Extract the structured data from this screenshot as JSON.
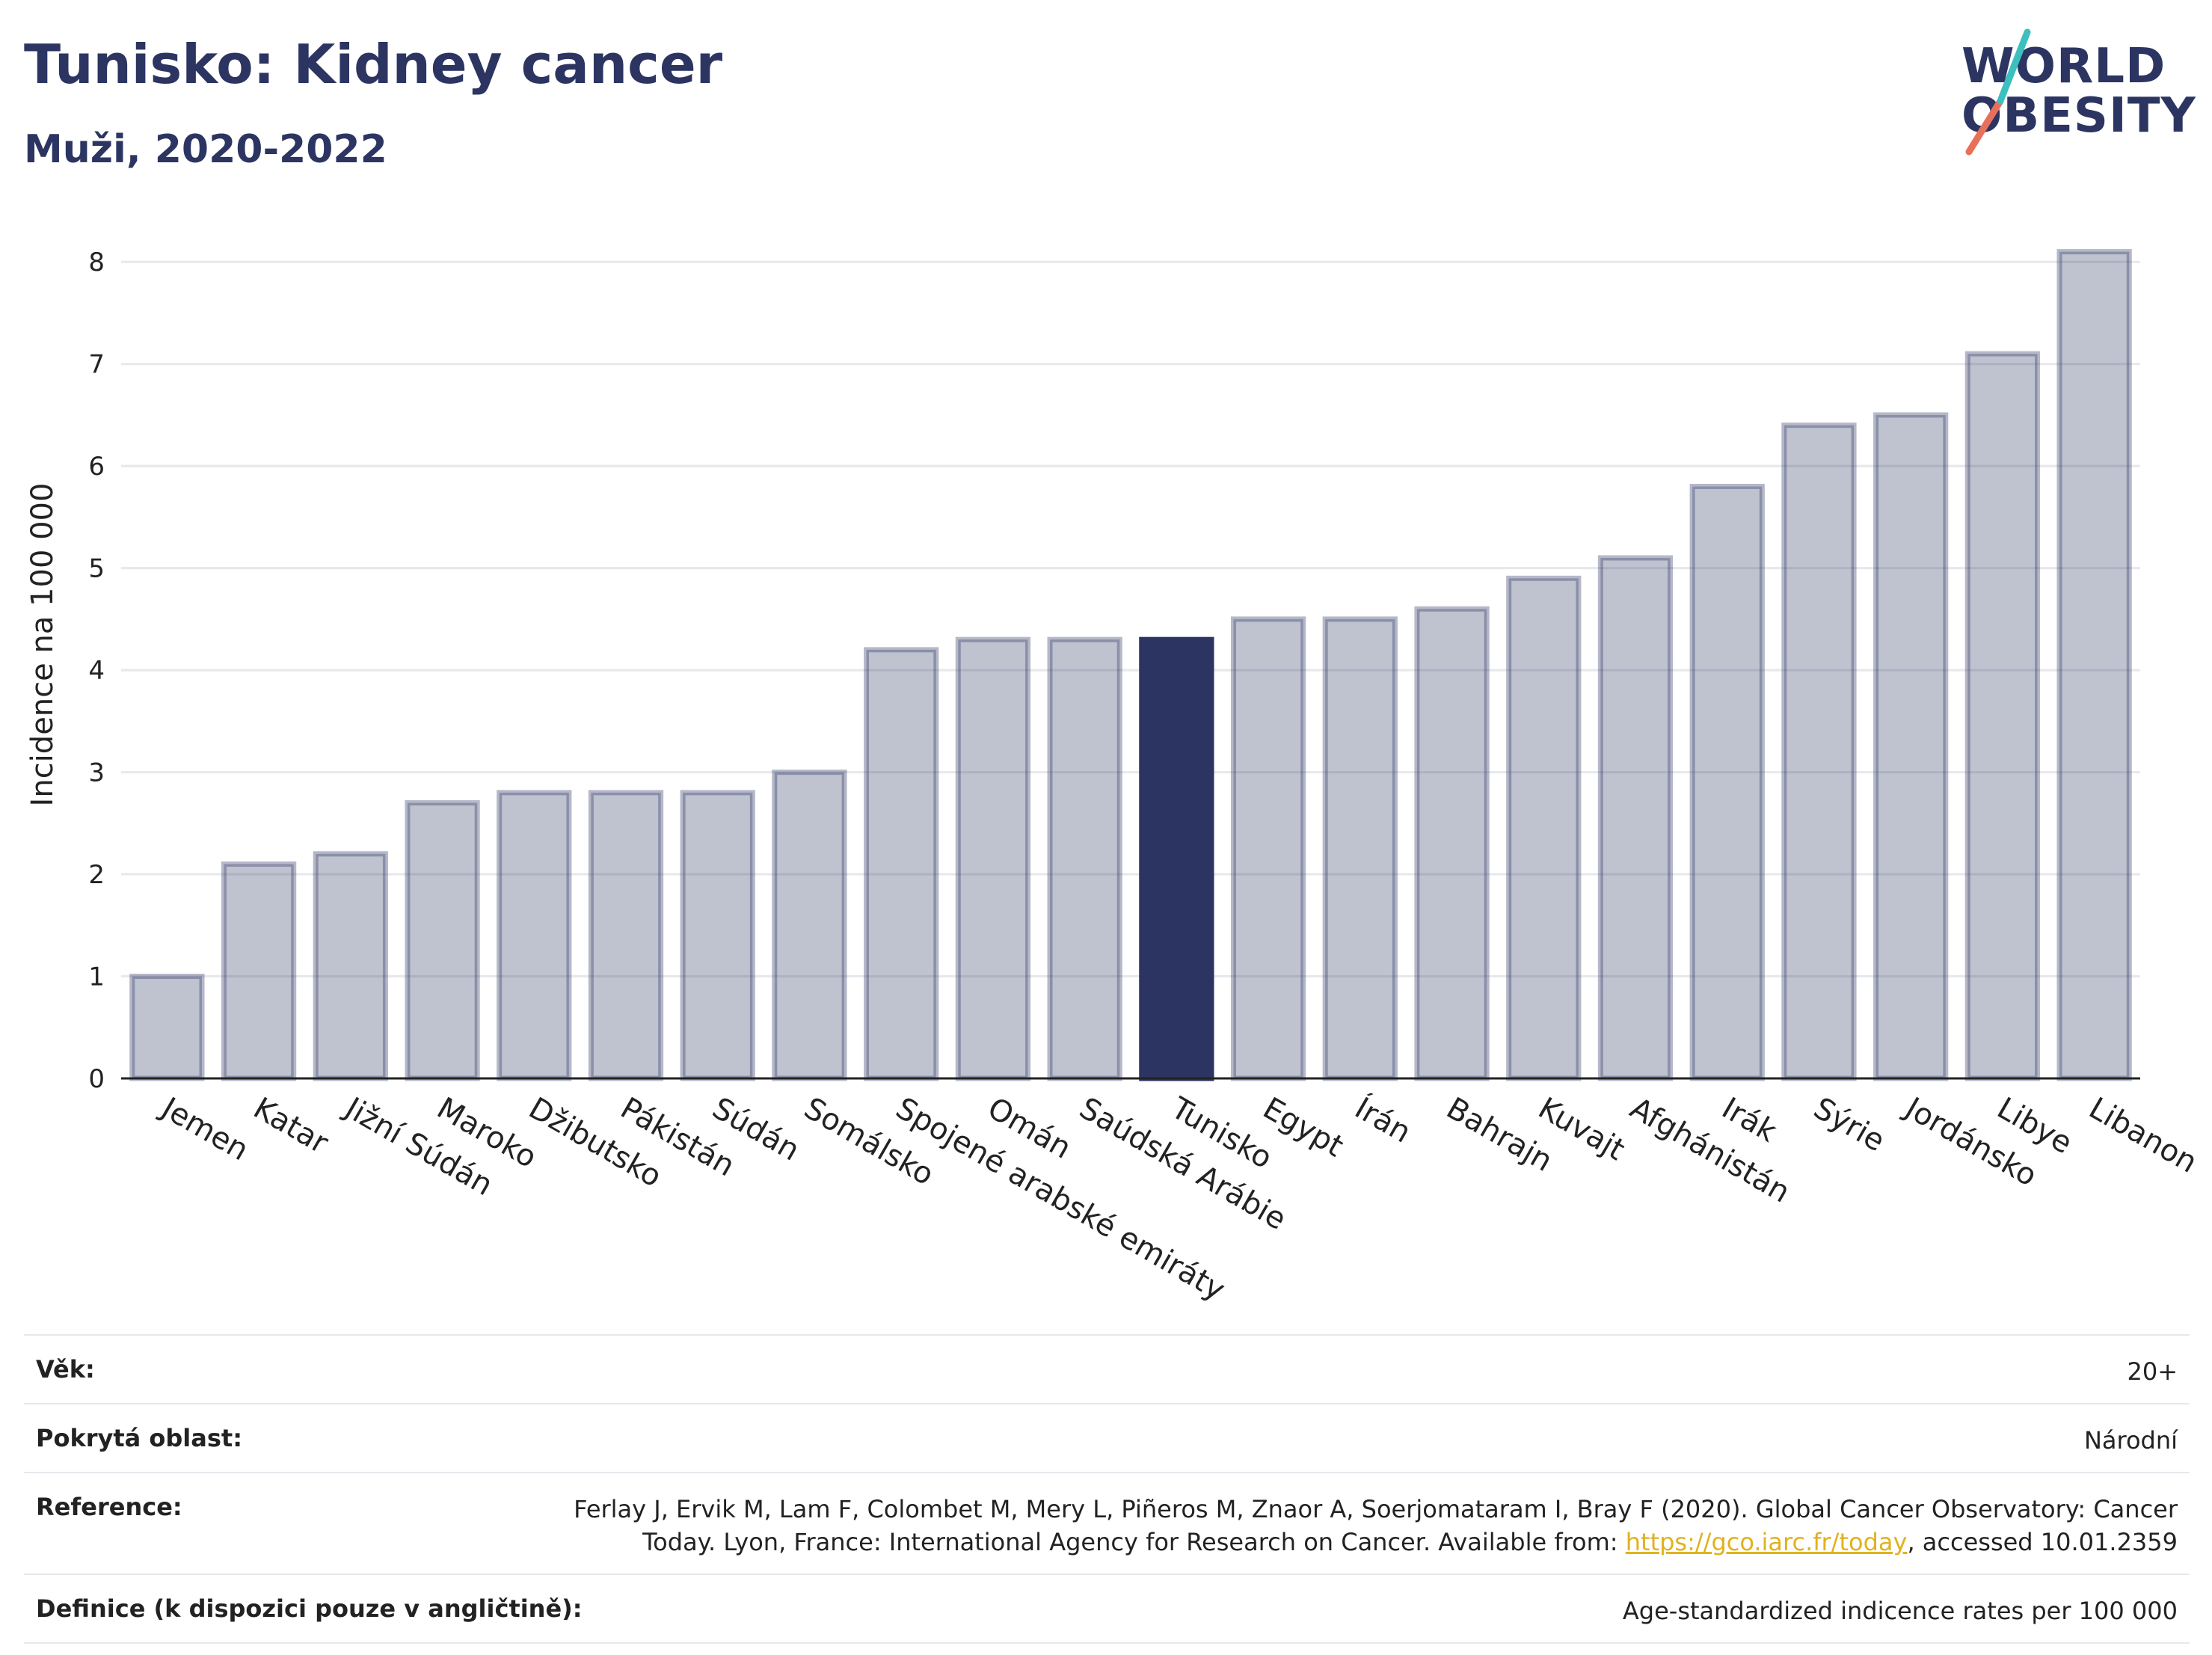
{
  "header": {
    "title": "Tunisko: Kidney cancer",
    "subtitle": "Muži, 2020-2022"
  },
  "logo": {
    "line1": "WORLD",
    "line2": "OBESITY",
    "colors": [
      "#2c3561",
      "#e8705a",
      "#3cbfbf"
    ]
  },
  "chart_data": {
    "type": "bar",
    "ylabel": "Incidence na 100 000",
    "ylim": [
      0,
      8.5
    ],
    "yticks": [
      0,
      1,
      2,
      3,
      4,
      5,
      6,
      7,
      8
    ],
    "grid": true,
    "highlight": "Tunisko",
    "colors": {
      "bar": "#2c3561",
      "highlight": "#2c3561"
    },
    "categories": [
      "Jemen",
      "Katar",
      "Jižní Súdán",
      "Maroko",
      "Džibutsko",
      "Pákistán",
      "Súdán",
      "Somálsko",
      "Spojené arabské emiráty",
      "Omán",
      "Saúdská Arábie",
      "Tunisko",
      "Egypt",
      "Írán",
      "Bahrajn",
      "Kuvajt",
      "Afghánistán",
      "Irák",
      "Sýrie",
      "Jordánsko",
      "Libye",
      "Libanon"
    ],
    "values": [
      1.0,
      2.1,
      2.2,
      2.7,
      2.8,
      2.8,
      2.8,
      3.0,
      4.2,
      4.3,
      4.3,
      4.3,
      4.5,
      4.5,
      4.6,
      4.9,
      5.1,
      5.8,
      6.4,
      6.5,
      7.1,
      8.1
    ]
  },
  "info": {
    "age_label": "Věk:",
    "age_value": "20+",
    "coverage_label": "Pokrytá oblast:",
    "coverage_value": "Národní",
    "reference_label": "Reference:",
    "reference_line1": "Ferlay J, Ervik M, Lam F, Colombet M, Mery L, Piñeros M, Znaor A, Soerjomataram I, Bray F (2020). Global Cancer Observatory: Cancer",
    "reference_line2_prefix": "Today. Lyon, France: International Agency for Research on Cancer. Available from: ",
    "reference_link": "https://gco.iarc.fr/today",
    "reference_line2_suffix": ", accessed 10.01.2359",
    "definition_label": "Definice (k dispozici pouze v angličtině):",
    "definition_value": "Age-standardized indicence rates per 100 000"
  }
}
